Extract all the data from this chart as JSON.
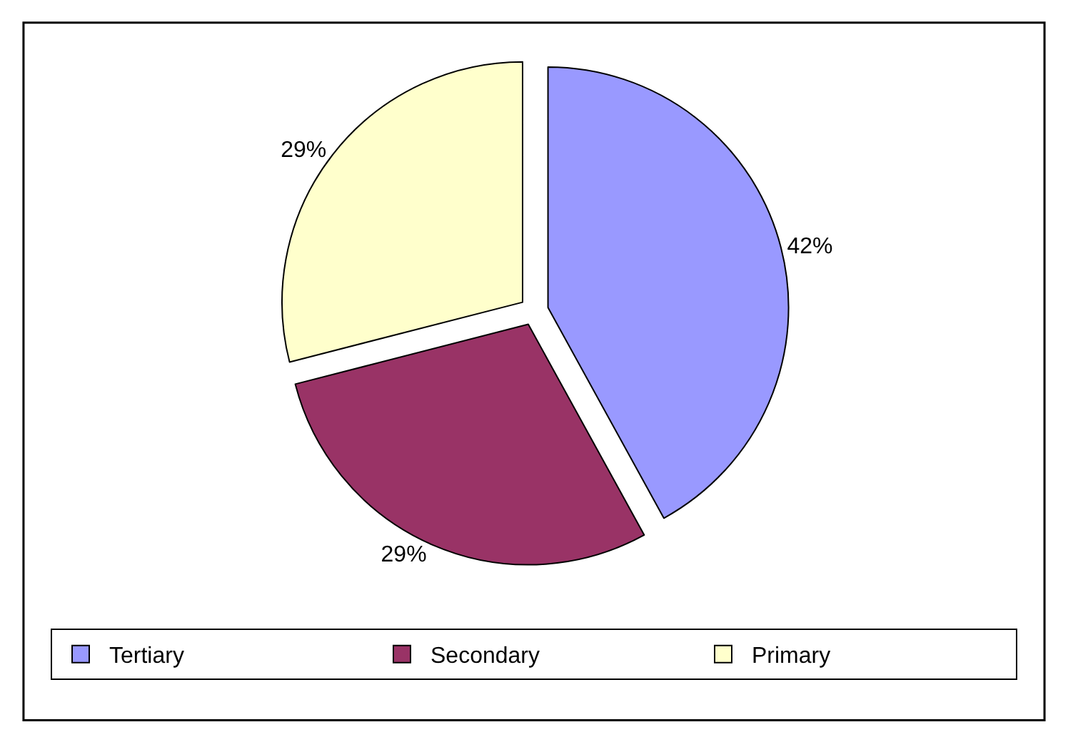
{
  "chart_data": {
    "type": "pie",
    "categories": [
      "Tertiary",
      "Secondary",
      "Primary"
    ],
    "values": [
      42,
      29,
      29
    ],
    "colors": [
      "#9999ff",
      "#993366",
      "#ffffcc"
    ],
    "value_labels": [
      "42%",
      "29%",
      "29%"
    ],
    "legend": "bottom"
  }
}
